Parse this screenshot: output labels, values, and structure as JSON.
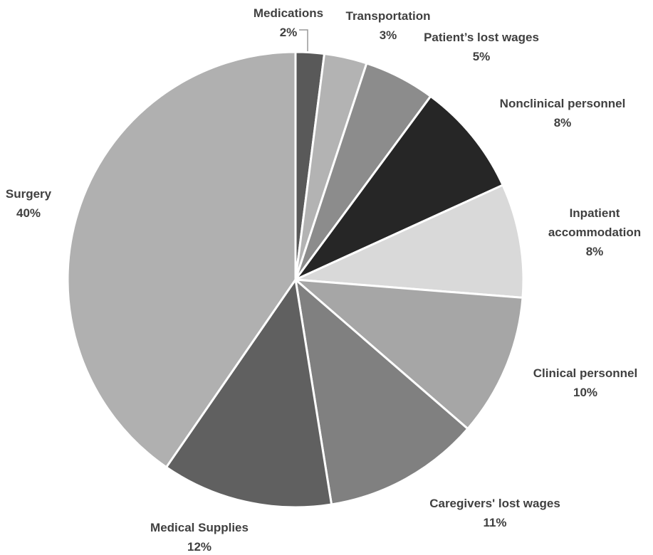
{
  "chart_data": {
    "type": "pie",
    "categories": [
      "Medications",
      "Transportation",
      "Patient’s lost wages",
      "Nonclinical personnel",
      "Inpatient accommodation",
      "Clinical personnel",
      "Caregivers' lost wages",
      "Medical Supplies",
      "Surgery"
    ],
    "values": [
      2,
      3,
      5,
      8,
      8,
      10,
      11,
      12,
      40
    ],
    "value_labels": [
      "2%",
      "3%",
      "5%",
      "8%",
      "8%",
      "10%",
      "11%",
      "12%",
      "40%"
    ],
    "colors": [
      "#595959",
      "#b3b3b3",
      "#8c8c8c",
      "#262626",
      "#d9d9d9",
      "#a6a6a6",
      "#808080",
      "#606060",
      "#b0b0b0"
    ]
  }
}
